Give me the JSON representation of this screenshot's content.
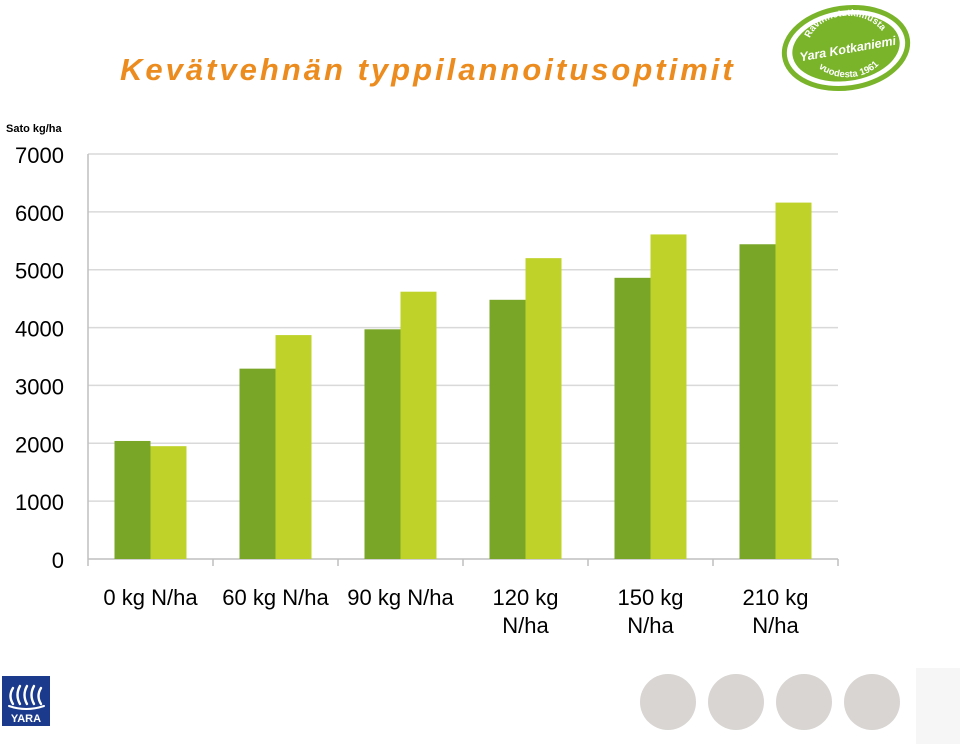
{
  "title": "Kevätvehnän typpilannoitusoptimit",
  "seal": {
    "line1": "Ravinnetutkimusta",
    "line2": "Yara Kotkaniemi",
    "line3": "vuodesta 1961"
  },
  "logo": {
    "text": "YARA"
  },
  "colors": {
    "title": "#ec8c1f",
    "series_dark": "#7aa628",
    "series_light": "#bfd22a",
    "seal_green": "#79b42a",
    "logo_blue": "#1c3a8c",
    "dots": "#d8d5d2"
  },
  "chart_data": {
    "type": "bar",
    "ylabel": "Sato kg/ha",
    "ylim": [
      0,
      7000
    ],
    "yticks": [
      0,
      1000,
      2000,
      3000,
      4000,
      5000,
      6000,
      7000
    ],
    "grid": true,
    "categories": [
      [
        "0 kg N/ha"
      ],
      [
        "60 kg N/ha"
      ],
      [
        "90 kg N/ha"
      ],
      [
        "120 kg",
        "N/ha"
      ],
      [
        "150 kg",
        "N/ha"
      ],
      [
        "210 kg",
        "N/ha"
      ]
    ],
    "series": [
      {
        "values": [
          2040,
          3290,
          3970,
          4480,
          4860,
          5440
        ]
      },
      {
        "values": [
          1950,
          3870,
          4620,
          5200,
          5610,
          6160
        ]
      }
    ]
  }
}
